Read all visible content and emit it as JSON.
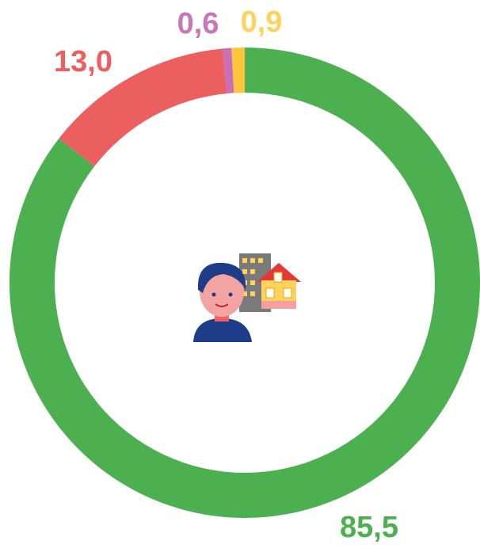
{
  "chart_data": {
    "type": "donut",
    "categories": [
      null,
      null,
      null,
      null
    ],
    "values": [
      85.5,
      13.0,
      0.6,
      0.9
    ],
    "value_labels": [
      "85,5",
      "13,0",
      "0,6",
      "0,9"
    ],
    "colors": [
      "#4caf50",
      "#ec5f5f",
      "#c86fb5",
      "#ffc53a"
    ],
    "label_colors": [
      "#4caf50",
      "#ec5f5f",
      "#c876b8",
      "#ffd25c"
    ]
  }
}
